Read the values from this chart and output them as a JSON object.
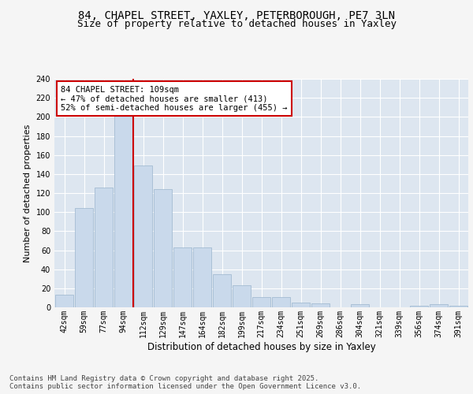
{
  "title1": "84, CHAPEL STREET, YAXLEY, PETERBOROUGH, PE7 3LN",
  "title2": "Size of property relative to detached houses in Yaxley",
  "xlabel": "Distribution of detached houses by size in Yaxley",
  "ylabel": "Number of detached properties",
  "categories": [
    "42sqm",
    "59sqm",
    "77sqm",
    "94sqm",
    "112sqm",
    "129sqm",
    "147sqm",
    "164sqm",
    "182sqm",
    "199sqm",
    "217sqm",
    "234sqm",
    "251sqm",
    "269sqm",
    "286sqm",
    "304sqm",
    "321sqm",
    "339sqm",
    "356sqm",
    "374sqm",
    "391sqm"
  ],
  "values": [
    13,
    104,
    126,
    201,
    149,
    124,
    63,
    63,
    35,
    23,
    11,
    11,
    5,
    4,
    0,
    3,
    0,
    0,
    2,
    3,
    2
  ],
  "bar_color": "#c9d9eb",
  "bar_edge_color": "#9ab5cc",
  "vline_x_index": 4,
  "vline_color": "#cc0000",
  "background_color": "#dde6f0",
  "plot_bg_color": "#dde6f0",
  "fig_bg_color": "#f5f5f5",
  "annotation_text": "84 CHAPEL STREET: 109sqm\n← 47% of detached houses are smaller (413)\n52% of semi-detached houses are larger (455) →",
  "annotation_box_color": "#ffffff",
  "annotation_box_edge_color": "#cc0000",
  "ylim": [
    0,
    240
  ],
  "yticks": [
    0,
    20,
    40,
    60,
    80,
    100,
    120,
    140,
    160,
    180,
    200,
    220,
    240
  ],
  "footer": "Contains HM Land Registry data © Crown copyright and database right 2025.\nContains public sector information licensed under the Open Government Licence v3.0.",
  "title1_fontsize": 10,
  "title2_fontsize": 9,
  "xlabel_fontsize": 8.5,
  "ylabel_fontsize": 8,
  "tick_fontsize": 7,
  "annotation_fontsize": 7.5,
  "footer_fontsize": 6.5
}
